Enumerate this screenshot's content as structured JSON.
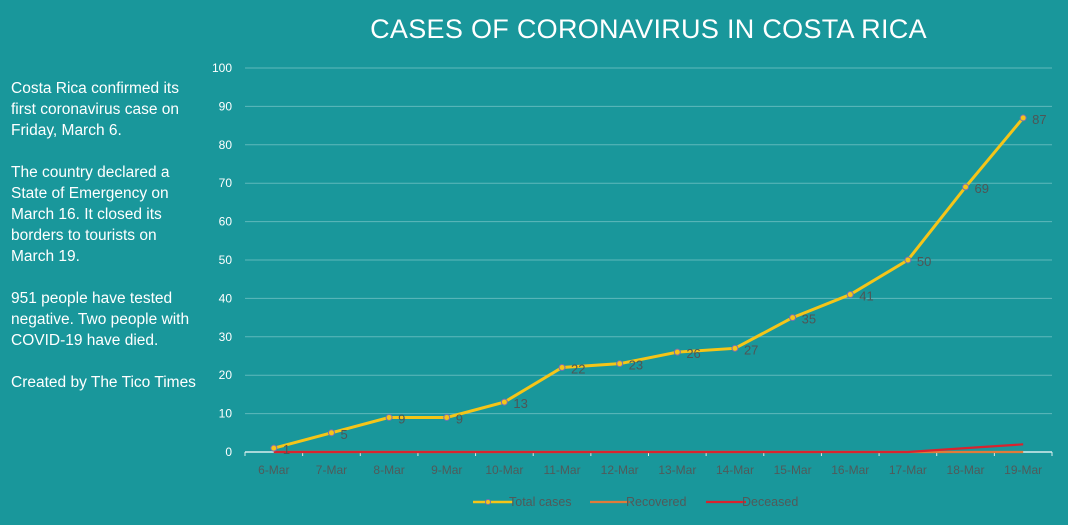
{
  "sidebar": {
    "paragraphs": [
      "Costa Rica confirmed its first coronavirus case on Friday, March 6.",
      "The country declared a State of Emergency on March 16. It closed its borders to tourists on March 19.",
      "951 people have tested negative. Two people with COVID-19 have died.",
      "Created by The Tico Times"
    ]
  },
  "chart_data": {
    "type": "line",
    "title": "CASES OF CORONAVIRUS IN COSTA RICA",
    "xlabel": "",
    "ylabel": "",
    "ylim": [
      0,
      100
    ],
    "yticks": [
      0,
      10,
      20,
      30,
      40,
      50,
      60,
      70,
      80,
      90,
      100
    ],
    "grid": true,
    "legend": "bottom",
    "categories": [
      "6-Mar",
      "7-Mar",
      "8-Mar",
      "9-Mar",
      "10-Mar",
      "11-Mar",
      "12-Mar",
      "13-Mar",
      "14-Mar",
      "15-Mar",
      "16-Mar",
      "17-Mar",
      "18-Mar",
      "19-Mar"
    ],
    "series": [
      {
        "name": "Total cases",
        "color": "#f5c518",
        "markers": true,
        "data_labels": true,
        "values": [
          1,
          5,
          9,
          9,
          13,
          22,
          23,
          26,
          27,
          35,
          41,
          50,
          69,
          87
        ]
      },
      {
        "name": "Recovered",
        "color": "#e07b39",
        "markers": false,
        "data_labels": false,
        "values": [
          0,
          0,
          0,
          0,
          0,
          0,
          0,
          0,
          0,
          0,
          0,
          0,
          0,
          0
        ]
      },
      {
        "name": "Deceased",
        "color": "#d9232e",
        "markers": false,
        "data_labels": false,
        "values": [
          0,
          0,
          0,
          0,
          0,
          0,
          0,
          0,
          0,
          0,
          0,
          0,
          1,
          2
        ]
      }
    ]
  }
}
